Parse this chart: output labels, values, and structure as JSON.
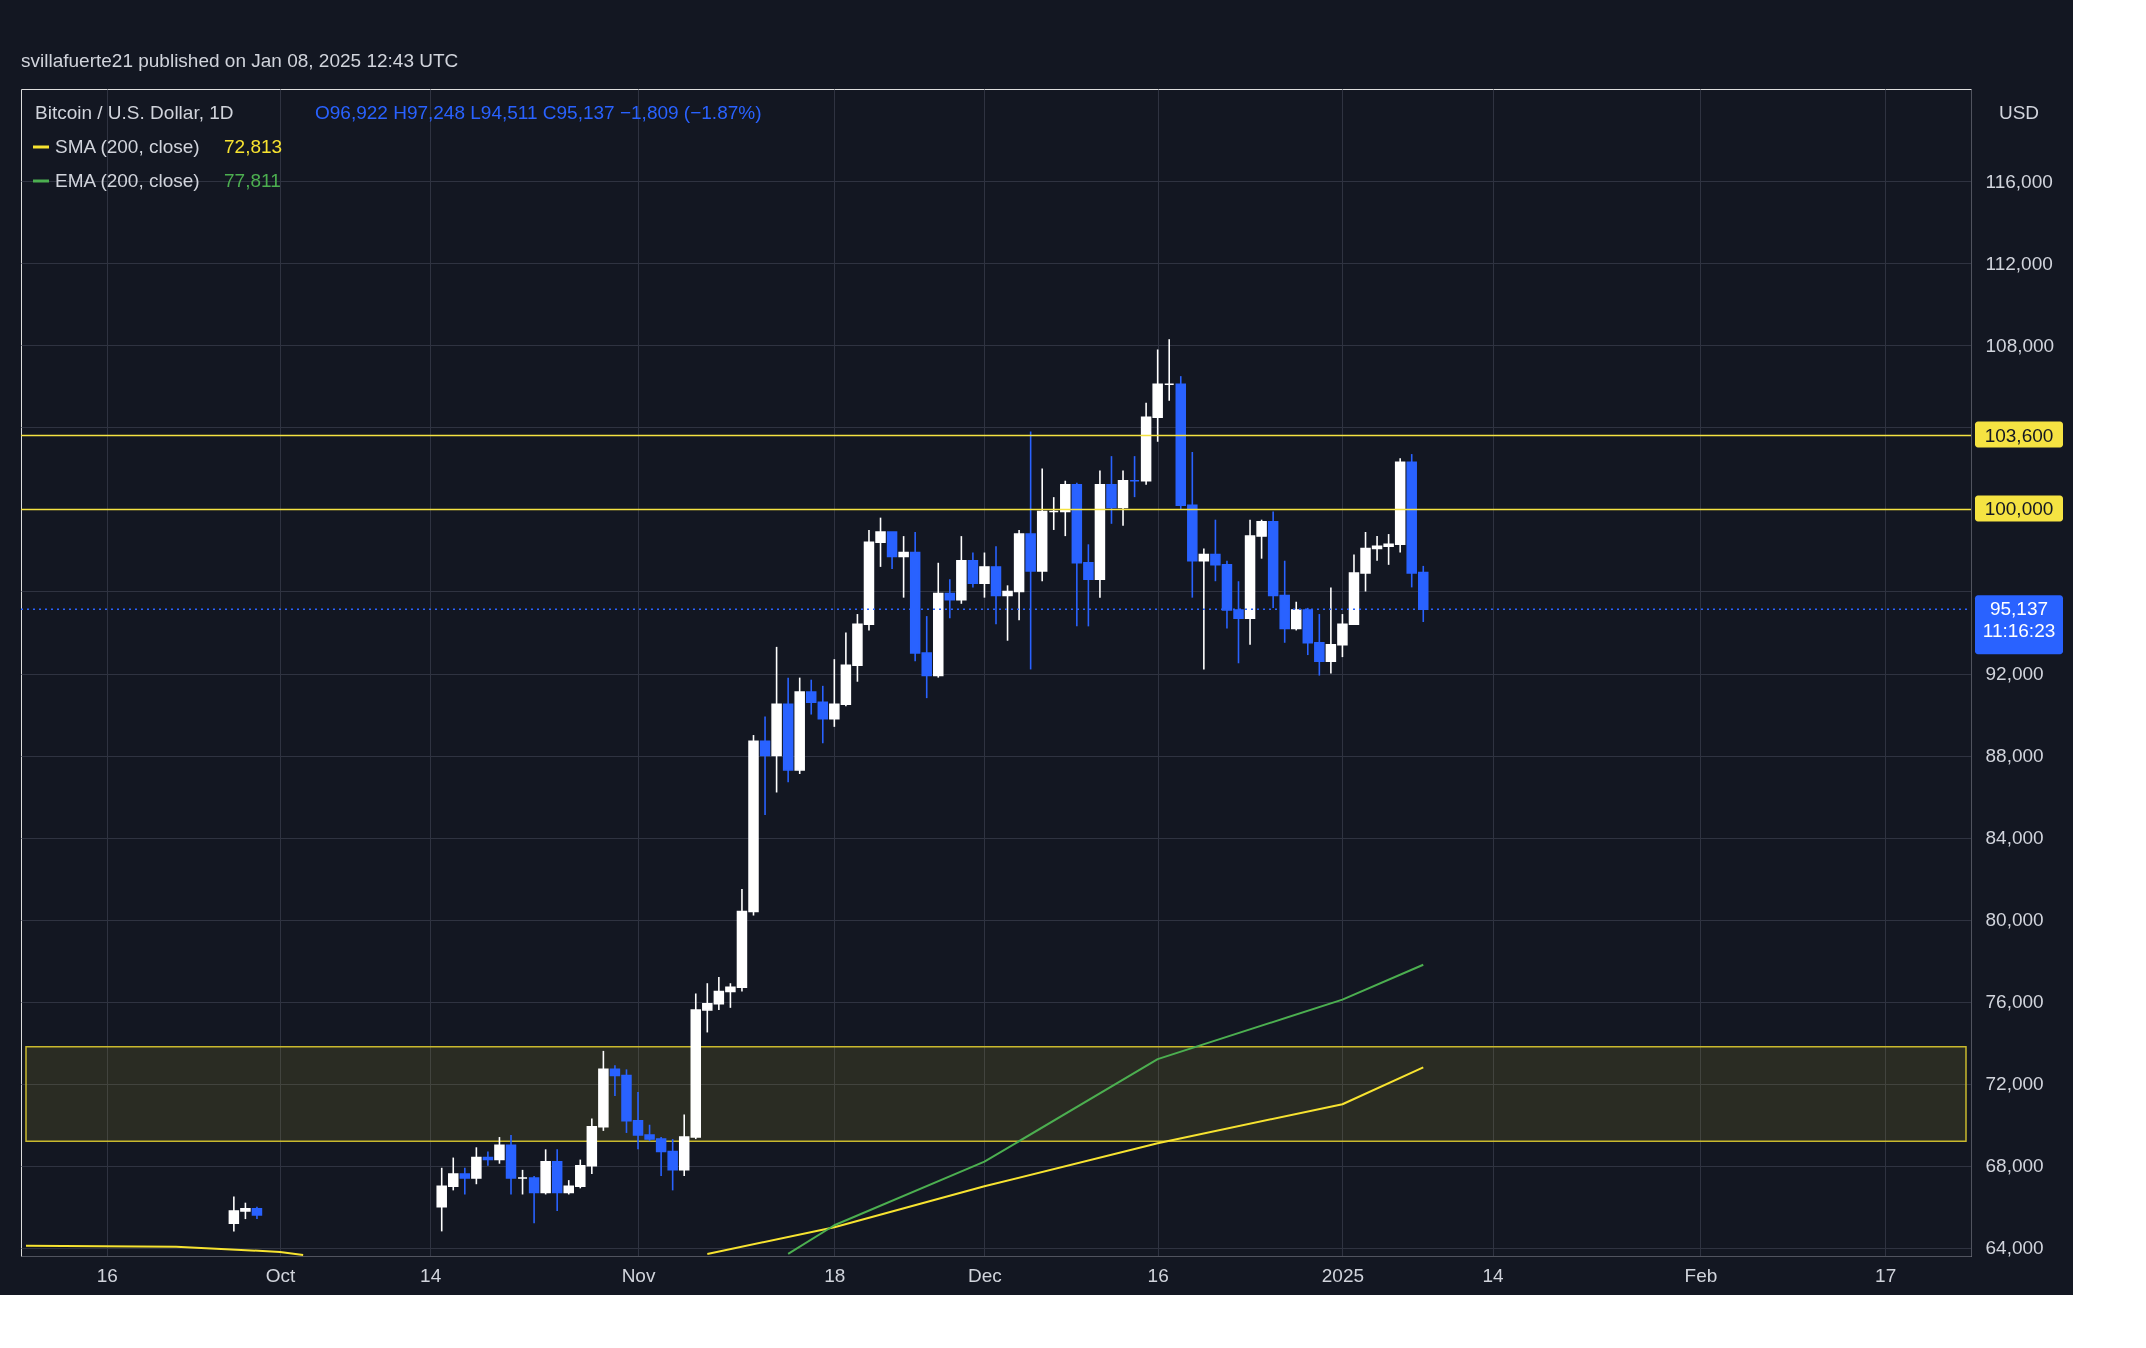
{
  "chart_data": {
    "type": "candlestick",
    "title": "Bitcoin / U.S. Dollar, 1D",
    "subtitle": "O96,922  H97,248  L94,511  C95,137  −1,809 (−1.87%)",
    "annotations": [
      "svillafuerte21 published on Jan 08, 2025 12:43 UTC",
      "USD",
      "72,813",
      "77,811"
    ],
    "xlim": [
      "2024-09-09",
      "2025-02-24"
    ],
    "xticks": [
      {
        "value": "2024-09-16",
        "label": "16"
      },
      {
        "value": "2024-10-01",
        "label": "Oct"
      },
      {
        "value": "2024-10-14",
        "label": "14"
      },
      {
        "value": "2024-11-01",
        "label": "Nov"
      },
      {
        "value": "2024-11-18",
        "label": "18"
      },
      {
        "value": "2024-12-01",
        "label": "Dec"
      },
      {
        "value": "2024-12-16",
        "label": "16"
      },
      {
        "value": "2025-01-01",
        "label": "2025"
      },
      {
        "value": "2025-01-14",
        "label": "14"
      },
      {
        "value": "2025-02-01",
        "label": "Feb"
      },
      {
        "value": "2025-02-17",
        "label": "17"
      }
    ],
    "ylim": [
      63600,
      120500
    ],
    "yticks": [
      {
        "value": 64000,
        "label": "64,000"
      },
      {
        "value": 68000,
        "label": "68,000"
      },
      {
        "value": 72000,
        "label": "72,000"
      },
      {
        "value": 76000,
        "label": "76,000"
      },
      {
        "value": 80000,
        "label": "80,000"
      },
      {
        "value": 84000,
        "label": "84,000"
      },
      {
        "value": 88000,
        "label": "88,000"
      },
      {
        "value": 92000,
        "label": "92,000"
      },
      {
        "value": 96000,
        "label": null
      },
      {
        "value": 100000,
        "label": null
      },
      {
        "value": 104000,
        "label": null
      },
      {
        "value": 108000,
        "label": "108,000"
      },
      {
        "value": 112000,
        "label": "112,000"
      },
      {
        "value": 116000,
        "label": "116,000"
      }
    ],
    "grid": true,
    "legend": "top left",
    "ref_lines": [
      {
        "axis": "y",
        "value": 103600,
        "label": "103,600",
        "color": "#f5e342",
        "line_style": "solid"
      },
      {
        "axis": "y",
        "value": 100000,
        "label": "100,000",
        "color": "#f5e342",
        "line_style": "solid"
      },
      {
        "axis": "y",
        "value": 95137,
        "label": "95,137\n11:16:23",
        "color": "#2962ff",
        "line_style": "dotted"
      }
    ],
    "bands": [
      {
        "axis": "y",
        "from": 69200,
        "to": 73800,
        "color": "#c9b92e"
      }
    ],
    "series": [
      {
        "type": "line",
        "name": "SMA (200, close)",
        "color": "#f7e330",
        "x": [
          "2024-09-09",
          "2024-09-22",
          "2024-10-01",
          "2024-10-03",
          "2024-10-20",
          "2024-11-07",
          "2024-11-18",
          "2024-12-01",
          "2024-12-16",
          "2025-01-01",
          "2025-01-08"
        ],
        "values": [
          64100,
          64050,
          63800,
          63650,
          null,
          63700,
          65000,
          67000,
          69100,
          71000,
          72800
        ]
      },
      {
        "type": "line",
        "name": "EMA (200, close)",
        "color": "#4caf50",
        "x": [
          "2024-11-14",
          "2024-11-18",
          "2024-12-01",
          "2024-12-16",
          "2025-01-01",
          "2025-01-08"
        ],
        "values": [
          63700,
          65100,
          68200,
          73200,
          76100,
          77800
        ]
      },
      {
        "x": [
          "2024-09-27",
          "2024-09-28",
          "2024-09-29",
          "2024-10-15",
          "2024-10-16",
          "2024-10-17",
          "2024-10-18",
          "2024-10-19",
          "2024-10-20",
          "2024-10-21",
          "2024-10-22",
          "2024-10-23",
          "2024-10-24",
          "2024-10-25",
          "2024-10-26",
          "2024-10-27",
          "2024-10-28",
          "2024-10-29",
          "2024-10-30",
          "2024-10-31",
          "2024-11-01",
          "2024-11-02",
          "2024-11-03",
          "2024-11-04",
          "2024-11-05",
          "2024-11-06",
          "2024-11-07",
          "2024-11-08",
          "2024-11-09",
          "2024-11-10",
          "2024-11-11",
          "2024-11-12",
          "2024-11-13",
          "2024-11-14",
          "2024-11-15",
          "2024-11-16",
          "2024-11-17",
          "2024-11-18",
          "2024-11-19",
          "2024-11-20",
          "2024-11-21",
          "2024-11-22",
          "2024-11-23",
          "2024-11-24",
          "2024-11-25",
          "2024-11-26",
          "2024-11-27",
          "2024-11-28",
          "2024-11-29",
          "2024-11-30",
          "2024-12-01",
          "2024-12-02",
          "2024-12-03",
          "2024-12-04",
          "2024-12-05",
          "2024-12-06",
          "2024-12-07",
          "2024-12-08",
          "2024-12-09",
          "2024-12-10",
          "2024-12-11",
          "2024-12-12",
          "2024-12-13",
          "2024-12-14",
          "2024-12-15",
          "2024-12-16",
          "2024-12-17",
          "2024-12-18",
          "2024-12-19",
          "2024-12-20",
          "2024-12-21",
          "2024-12-22",
          "2024-12-23",
          "2024-12-24",
          "2024-12-25",
          "2024-12-26",
          "2024-12-27",
          "2024-12-28",
          "2024-12-29",
          "2024-12-30",
          "2024-12-31",
          "2025-01-01",
          "2025-01-02",
          "2025-01-03",
          "2025-01-04",
          "2025-01-05",
          "2025-01-06",
          "2025-01-07",
          "2025-01-08"
        ],
        "ohlc": [
          [
            65200,
            66500,
            64800,
            65800
          ],
          [
            65800,
            66200,
            65400,
            65900
          ],
          [
            65900,
            66000,
            65400,
            65600
          ],
          [
            66000,
            67900,
            64800,
            67000
          ],
          [
            67000,
            68400,
            66800,
            67600
          ],
          [
            67600,
            67900,
            66600,
            67400
          ],
          [
            67400,
            68900,
            67100,
            68400
          ],
          [
            68400,
            68700,
            68000,
            68300
          ],
          [
            68300,
            69400,
            68100,
            69000
          ],
          [
            69000,
            69500,
            66600,
            67400
          ],
          [
            67400,
            67800,
            66600,
            67400
          ],
          [
            67400,
            67500,
            65200,
            66700
          ],
          [
            66700,
            68800,
            66600,
            68200
          ],
          [
            68200,
            68800,
            65800,
            66700
          ],
          [
            66700,
            67300,
            66600,
            67000
          ],
          [
            67000,
            68300,
            66900,
            68000
          ],
          [
            68000,
            70300,
            67600,
            69900
          ],
          [
            69900,
            73600,
            69700,
            72700
          ],
          [
            72700,
            72900,
            71400,
            72400
          ],
          [
            72400,
            72700,
            69600,
            70200
          ],
          [
            70200,
            71600,
            68800,
            69500
          ],
          [
            69500,
            70000,
            69200,
            69300
          ],
          [
            69300,
            69400,
            67500,
            68700
          ],
          [
            68700,
            69300,
            66800,
            67800
          ],
          [
            67800,
            70500,
            67500,
            69400
          ],
          [
            69400,
            76400,
            69300,
            75600
          ],
          [
            75600,
            76900,
            74500,
            75900
          ],
          [
            75900,
            77200,
            75600,
            76500
          ],
          [
            76500,
            76900,
            75700,
            76700
          ],
          [
            76700,
            81500,
            76500,
            80400
          ],
          [
            80400,
            89000,
            80200,
            88700
          ],
          [
            88700,
            89900,
            85100,
            88000
          ],
          [
            88000,
            93300,
            86200,
            90500
          ],
          [
            90500,
            91800,
            86700,
            87300
          ],
          [
            87300,
            91800,
            87100,
            91100
          ],
          [
            91100,
            91700,
            90000,
            90600
          ],
          [
            90600,
            91400,
            88600,
            89800
          ],
          [
            89800,
            92700,
            89400,
            90500
          ],
          [
            90500,
            94000,
            90400,
            92400
          ],
          [
            92400,
            94900,
            91600,
            94400
          ],
          [
            94400,
            99000,
            94100,
            98400
          ],
          [
            98400,
            99600,
            97200,
            98900
          ],
          [
            98900,
            98900,
            97100,
            97700
          ],
          [
            97700,
            98700,
            95700,
            97900
          ],
          [
            97900,
            98900,
            92600,
            93000
          ],
          [
            93000,
            94800,
            90800,
            91900
          ],
          [
            91900,
            97400,
            91800,
            95900
          ],
          [
            95900,
            96600,
            94700,
            95600
          ],
          [
            95600,
            98700,
            95400,
            97500
          ],
          [
            97500,
            97900,
            96200,
            96400
          ],
          [
            96400,
            97900,
            95700,
            97200
          ],
          [
            97200,
            98200,
            94400,
            95800
          ],
          [
            95800,
            96300,
            93600,
            96000
          ],
          [
            96000,
            99000,
            94600,
            98800
          ],
          [
            98800,
            103800,
            92200,
            97000
          ],
          [
            97000,
            102000,
            96500,
            99900
          ],
          [
            99900,
            100600,
            99000,
            99900
          ],
          [
            99900,
            101400,
            98700,
            101200
          ],
          [
            101200,
            101300,
            94300,
            97400
          ],
          [
            97400,
            98300,
            94300,
            96600
          ],
          [
            96600,
            101900,
            95700,
            101200
          ],
          [
            101200,
            102600,
            99300,
            100100
          ],
          [
            100100,
            101900,
            99200,
            101400
          ],
          [
            101400,
            102600,
            100600,
            101400
          ],
          [
            101400,
            105200,
            101200,
            104500
          ],
          [
            104500,
            107800,
            103300,
            106100
          ],
          [
            106100,
            108300,
            105300,
            106100
          ],
          [
            106100,
            106500,
            100000,
            100200
          ],
          [
            100200,
            102800,
            95700,
            97500
          ],
          [
            97500,
            98100,
            92200,
            97800
          ],
          [
            97800,
            99500,
            96500,
            97300
          ],
          [
            97300,
            97500,
            94200,
            95100
          ],
          [
            95100,
            96500,
            92500,
            94700
          ],
          [
            94700,
            99500,
            93400,
            98700
          ],
          [
            98700,
            99500,
            97600,
            99400
          ],
          [
            99400,
            99900,
            95200,
            95800
          ],
          [
            95800,
            97500,
            93500,
            94200
          ],
          [
            94200,
            95500,
            94100,
            95100
          ],
          [
            95100,
            95200,
            92900,
            93500
          ],
          [
            93500,
            94900,
            91900,
            92600
          ],
          [
            92600,
            96200,
            92000,
            93400
          ],
          [
            93400,
            94900,
            92800,
            94400
          ],
          [
            94400,
            97800,
            94400,
            96900
          ],
          [
            96900,
            98900,
            96000,
            98100
          ],
          [
            98100,
            98700,
            97500,
            98200
          ],
          [
            98200,
            98800,
            97300,
            98300
          ],
          [
            98300,
            102500,
            97900,
            102300
          ],
          [
            102300,
            102700,
            96200,
            96900
          ],
          [
            96922,
            97248,
            94511,
            95137
          ]
        ],
        "colors": [
          "#ffffff",
          "#ffffff",
          "#2962ff",
          "#ffffff",
          "#ffffff",
          "#2962ff",
          "#ffffff",
          "#2962ff",
          "#ffffff",
          "#2962ff",
          "#ffffff",
          "#2962ff",
          "#ffffff",
          "#2962ff",
          "#ffffff",
          "#ffffff",
          "#ffffff",
          "#ffffff",
          "#2962ff",
          "#2962ff",
          "#2962ff",
          "#2962ff",
          "#2962ff",
          "#2962ff",
          "#ffffff",
          "#ffffff",
          "#ffffff",
          "#ffffff",
          "#ffffff",
          "#ffffff",
          "#ffffff",
          "#2962ff",
          "#ffffff",
          "#2962ff",
          "#ffffff",
          "#2962ff",
          "#2962ff",
          "#ffffff",
          "#ffffff",
          "#ffffff",
          "#ffffff",
          "#ffffff",
          "#2962ff",
          "#ffffff",
          "#2962ff",
          "#2962ff",
          "#ffffff",
          "#2962ff",
          "#ffffff",
          "#2962ff",
          "#ffffff",
          "#2962ff",
          "#ffffff",
          "#ffffff",
          "#2962ff",
          "#ffffff",
          "#ffffff",
          "#ffffff",
          "#2962ff",
          "#2962ff",
          "#ffffff",
          "#2962ff",
          "#ffffff",
          "#2962ff",
          "#ffffff",
          "#ffffff",
          "#ffffff",
          "#2962ff",
          "#2962ff",
          "#ffffff",
          "#2962ff",
          "#2962ff",
          "#2962ff",
          "#ffffff",
          "#ffffff",
          "#2962ff",
          "#2962ff",
          "#ffffff",
          "#2962ff",
          "#2962ff",
          "#ffffff",
          "#ffffff",
          "#ffffff",
          "#ffffff",
          "#ffffff",
          "#ffffff",
          "#ffffff",
          "#2962ff",
          "#2962ff"
        ]
      }
    ]
  }
}
